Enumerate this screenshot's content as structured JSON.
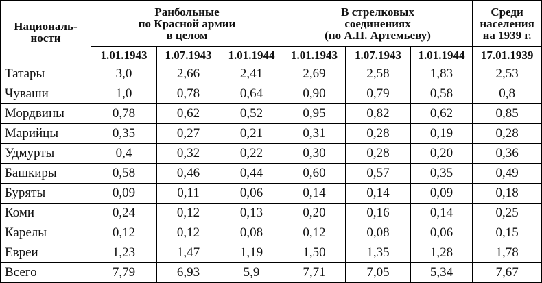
{
  "table": {
    "header": {
      "nationality": "Националь-\nности",
      "groups": [
        {
          "title": "Ранбольные\nпо Красной армии\nв целом",
          "dates": [
            "1.01.1943",
            "1.07.1943",
            "1.01.1944"
          ]
        },
        {
          "title": "В стрелковых\nсоединениях\n(по А.П. Артемьеву)",
          "dates": [
            "1.01.1943",
            "1.07.1943",
            "1.01.1944"
          ]
        },
        {
          "title": "Среди\nнаселения\nна 1939 г.",
          "dates": [
            "17.01.1939"
          ]
        }
      ]
    },
    "rows": [
      [
        "Татары",
        "3,0",
        "2,66",
        "2,41",
        "2,69",
        "2,58",
        "1,83",
        "2,53"
      ],
      [
        "Чуваши",
        "1,0",
        "0,78",
        "0,64",
        "0,90",
        "0,79",
        "0,58",
        "0,8"
      ],
      [
        "Мордвины",
        "0,78",
        "0,62",
        "0,52",
        "0,95",
        "0,82",
        "0,62",
        "0,85"
      ],
      [
        "Марийцы",
        "0,35",
        "0,27",
        "0,21",
        "0,31",
        "0,28",
        "0,19",
        "0,28"
      ],
      [
        "Удмурты",
        "0,4",
        "0,32",
        "0,22",
        "0,30",
        "0,28",
        "0,20",
        "0,36"
      ],
      [
        "Башкиры",
        "0,58",
        "0,46",
        "0,44",
        "0,60",
        "0,57",
        "0,35",
        "0,49"
      ],
      [
        "Буряты",
        "0,09",
        "0,11",
        "0,06",
        "0,14",
        "0,14",
        "0,09",
        "0,18"
      ],
      [
        "Коми",
        "0,24",
        "0,12",
        "0,13",
        "0,20",
        "0,16",
        "0,14",
        "0,25"
      ],
      [
        "Карелы",
        "0,12",
        "0,12",
        "0,08",
        "0,12",
        "0,08",
        "0,06",
        "0,15"
      ],
      [
        "Евреи",
        "1,23",
        "1,47",
        "1,19",
        "1,50",
        "1,35",
        "1,28",
        "1,78"
      ],
      [
        "Всего",
        "7,79",
        "6,93",
        "5,9",
        "7,71",
        "7,05",
        "5,34",
        "7,67"
      ]
    ]
  }
}
